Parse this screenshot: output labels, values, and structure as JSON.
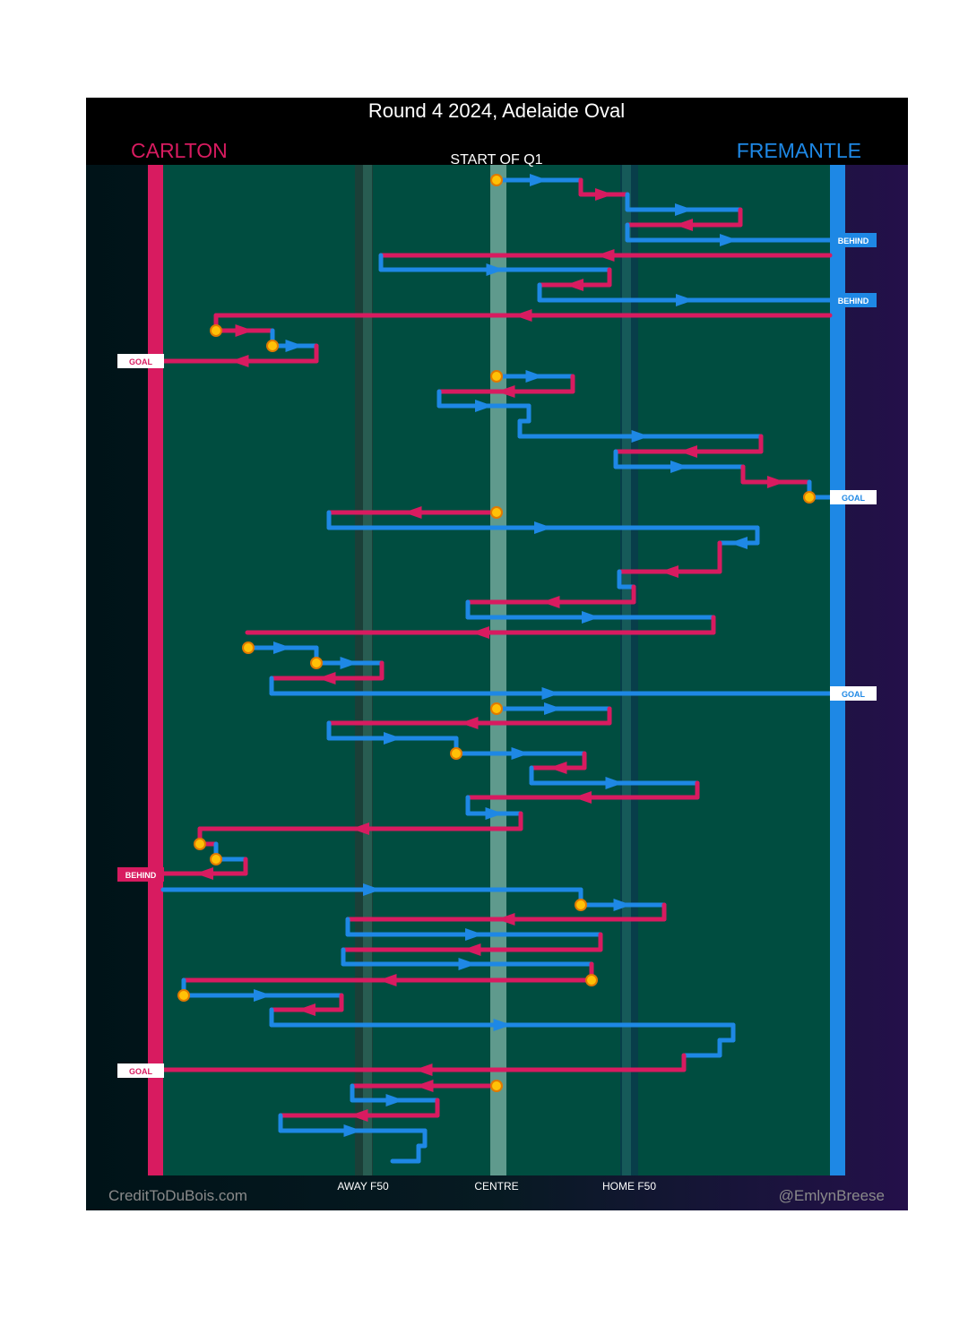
{
  "header": {
    "title": "Round 4 2024, Adelaide Oval",
    "home_team": "CARLTON",
    "away_team": "FREMANTLE",
    "start_label": "START OF Q1"
  },
  "zones": [
    "AWAY F50",
    "CENTRE",
    "HOME F50"
  ],
  "outcomes": [
    "BEHIND",
    "BEHIND",
    "GOAL",
    "GOAL",
    "GOAL",
    "BEHIND",
    "GOAL"
  ],
  "footer": {
    "left": "CreditToDuBois.com",
    "right": "@EmlynBreese"
  }
}
